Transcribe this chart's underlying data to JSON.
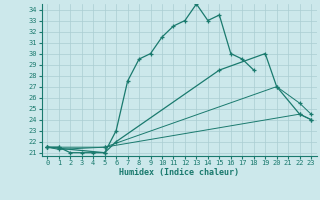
{
  "xlabel": "Humidex (Indice chaleur)",
  "line1_x": [
    0,
    1,
    2,
    3,
    4,
    5,
    6,
    7,
    8,
    9,
    10,
    11,
    12,
    13,
    14,
    15,
    16,
    17,
    18
  ],
  "line1_y": [
    21.5,
    21.5,
    21.0,
    21.0,
    21.0,
    21.0,
    23.0,
    27.5,
    29.5,
    30.0,
    31.5,
    32.5,
    33.0,
    34.5,
    33.0,
    33.5,
    30.0,
    29.5,
    28.5
  ],
  "line2_x": [
    0,
    5,
    6,
    15,
    19,
    20,
    22,
    23
  ],
  "line2_y": [
    21.5,
    21.0,
    22.0,
    28.5,
    30.0,
    27.0,
    24.5,
    24.0
  ],
  "line3_x": [
    0,
    1,
    5,
    20,
    22,
    23
  ],
  "line3_y": [
    21.5,
    21.5,
    21.5,
    27.0,
    25.5,
    24.5
  ],
  "line4_x": [
    0,
    1,
    5,
    22,
    23
  ],
  "line4_y": [
    21.5,
    21.3,
    21.5,
    24.5,
    24.0
  ],
  "line_color": "#1a7a6e",
  "bg_color": "#cce8eb",
  "grid_color": "#aacdd2",
  "ylim_min": 21,
  "ylim_max": 34,
  "xlim_min": -0.5,
  "xlim_max": 23.5,
  "yticks": [
    21,
    22,
    23,
    24,
    25,
    26,
    27,
    28,
    29,
    30,
    31,
    32,
    33,
    34
  ],
  "xticks": [
    0,
    1,
    2,
    3,
    4,
    5,
    6,
    7,
    8,
    9,
    10,
    11,
    12,
    13,
    14,
    15,
    16,
    17,
    18,
    19,
    20,
    21,
    22,
    23
  ]
}
